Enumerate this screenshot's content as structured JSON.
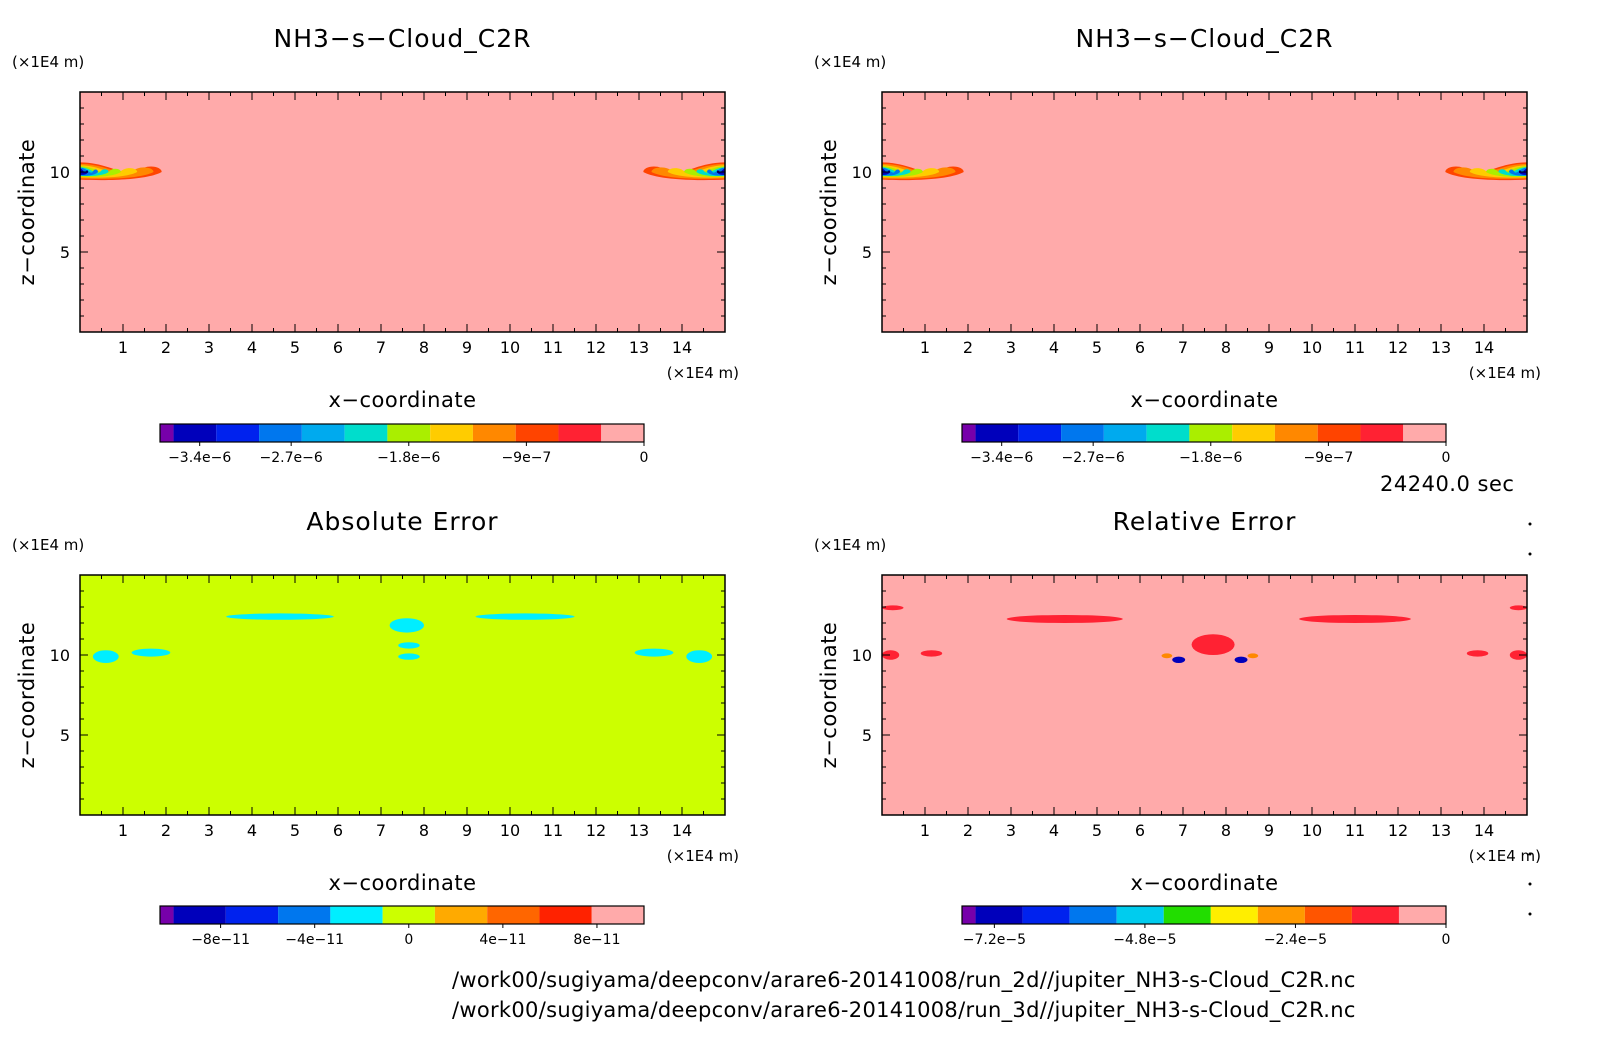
{
  "time_label": "24240.0 sec",
  "footer_lines": [
    "/work00/sugiyama/deepconv/arare6-20141008/run_2d//jupiter_NH3-s-Cloud_C2R.nc",
    "/work00/sugiyama/deepconv/arare6-20141008/run_3d//jupiter_NH3-s-Cloud_C2R.nc"
  ],
  "chart_data": [
    {
      "type": "heatmap",
      "title": "NH3−s−Cloud_C2R",
      "xlabel": "x−coordinate",
      "ylabel": "z−coordinate",
      "x_unit": "(×1E4 m)",
      "y_unit": "(×1E4 m)",
      "xlim": [
        0,
        15
      ],
      "ylim": [
        0,
        15
      ],
      "xticks": [
        "1",
        "2",
        "3",
        "4",
        "5",
        "6",
        "7",
        "8",
        "9",
        "10",
        "11",
        "12",
        "13",
        "14"
      ],
      "yticks": [
        "5",
        "10"
      ],
      "background": "#ffaaaa",
      "features": [
        {
          "shape": "cloud-lens",
          "x0": 0.0,
          "x1": 1.9,
          "z": 10.0,
          "dz": 0.3,
          "side": "left"
        },
        {
          "shape": "cloud-lens",
          "x0": 13.1,
          "x1": 15.0,
          "z": 10.0,
          "dz": 0.3,
          "side": "right"
        }
      ],
      "colorbar": {
        "colors": [
          "#7700aa",
          "#0000bb",
          "#0022ee",
          "#0077ee",
          "#00aaee",
          "#00ddcc",
          "#aaee00",
          "#ffcc00",
          "#ff8800",
          "#ff4400",
          "#ff2233",
          "#ffaaaa"
        ],
        "tick_labels": [
          "−3.4e−6",
          "−2.7e−6",
          "−1.8e−6",
          "−9e−7",
          "0"
        ],
        "tick_values": [
          -3.4e-06,
          -2.7e-06,
          -1.8e-06,
          -9e-07,
          0
        ],
        "range": [
          -3.6e-06,
          0
        ]
      }
    },
    {
      "type": "heatmap",
      "title": "NH3−s−Cloud_C2R",
      "xlabel": "x−coordinate",
      "ylabel": "z−coordinate",
      "x_unit": "(×1E4 m)",
      "y_unit": "(×1E4 m)",
      "xlim": [
        0,
        15
      ],
      "ylim": [
        0,
        15
      ],
      "xticks": [
        "1",
        "2",
        "3",
        "4",
        "5",
        "6",
        "7",
        "8",
        "9",
        "10",
        "11",
        "12",
        "13",
        "14"
      ],
      "yticks": [
        "5",
        "10"
      ],
      "background": "#ffaaaa",
      "features": [
        {
          "shape": "cloud-lens",
          "x0": 0.0,
          "x1": 1.9,
          "z": 10.0,
          "dz": 0.3,
          "side": "left"
        },
        {
          "shape": "cloud-lens",
          "x0": 13.1,
          "x1": 15.0,
          "z": 10.0,
          "dz": 0.3,
          "side": "right"
        }
      ],
      "colorbar": {
        "colors": [
          "#7700aa",
          "#0000bb",
          "#0022ee",
          "#0077ee",
          "#00aaee",
          "#00ddcc",
          "#aaee00",
          "#ffcc00",
          "#ff8800",
          "#ff4400",
          "#ff2233",
          "#ffaaaa"
        ],
        "tick_labels": [
          "−3.4e−6",
          "−2.7e−6",
          "−1.8e−6",
          "−9e−7",
          "0"
        ],
        "tick_values": [
          -3.4e-06,
          -2.7e-06,
          -1.8e-06,
          -9e-07,
          0
        ],
        "range": [
          -3.6e-06,
          0
        ]
      }
    },
    {
      "type": "heatmap",
      "title": "Absolute Error",
      "xlabel": "x−coordinate",
      "ylabel": "z−coordinate",
      "x_unit": "(×1E4 m)",
      "y_unit": "(×1E4 m)",
      "xlim": [
        0,
        15
      ],
      "ylim": [
        0,
        15
      ],
      "xticks": [
        "1",
        "2",
        "3",
        "4",
        "5",
        "6",
        "7",
        "8",
        "9",
        "10",
        "11",
        "12",
        "13",
        "14"
      ],
      "yticks": [
        "5",
        "10"
      ],
      "background": "#ccff00",
      "features": [
        {
          "shape": "blob",
          "color": "#00eeff",
          "x0": 3.4,
          "x1": 5.9,
          "z0": 12.2,
          "z1": 12.6
        },
        {
          "shape": "blob",
          "color": "#00eeff",
          "x0": 9.2,
          "x1": 11.5,
          "z0": 12.2,
          "z1": 12.6
        },
        {
          "shape": "blob",
          "color": "#00eeff",
          "x0": 7.2,
          "x1": 8.0,
          "z0": 11.4,
          "z1": 12.3
        },
        {
          "shape": "blob",
          "color": "#00eeff",
          "x0": 7.4,
          "x1": 7.9,
          "z0": 10.4,
          "z1": 10.8
        },
        {
          "shape": "blob",
          "color": "#00eeff",
          "x0": 7.4,
          "x1": 7.9,
          "z0": 9.7,
          "z1": 10.1
        },
        {
          "shape": "blob",
          "color": "#00eeff",
          "x0": 0.3,
          "x1": 0.9,
          "z0": 9.5,
          "z1": 10.3
        },
        {
          "shape": "blob",
          "color": "#00eeff",
          "x0": 1.2,
          "x1": 2.1,
          "z0": 9.9,
          "z1": 10.4
        },
        {
          "shape": "blob",
          "color": "#00eeff",
          "x0": 12.9,
          "x1": 13.8,
          "z0": 9.9,
          "z1": 10.4
        },
        {
          "shape": "blob",
          "color": "#00eeff",
          "x0": 14.1,
          "x1": 14.7,
          "z0": 9.5,
          "z1": 10.3
        }
      ],
      "colorbar": {
        "colors": [
          "#7700aa",
          "#0000bb",
          "#0022ee",
          "#0077ee",
          "#00eeff",
          "#ccff00",
          "#ffaa00",
          "#ff6600",
          "#ff2200",
          "#ffaaaa"
        ],
        "tick_labels": [
          "−8e−11",
          "−4e−11",
          "0",
          "4e−11",
          "8e−11"
        ],
        "tick_values": [
          -8e-11,
          -4e-11,
          0,
          4e-11,
          8e-11
        ],
        "range": [
          -1e-10,
          1e-10
        ]
      }
    },
    {
      "type": "heatmap",
      "title": "Relative Error",
      "xlabel": "x−coordinate",
      "ylabel": "z−coordinate",
      "x_unit": "(×1E4 m)",
      "y_unit": "(×1E4 m)",
      "xlim": [
        0,
        15
      ],
      "ylim": [
        0,
        15
      ],
      "xticks": [
        "1",
        "2",
        "3",
        "4",
        "5",
        "6",
        "7",
        "8",
        "9",
        "10",
        "11",
        "12",
        "13",
        "14"
      ],
      "yticks": [
        "5",
        "10"
      ],
      "background": "#ffaaaa",
      "features": [
        {
          "shape": "blob",
          "color": "#ff2233",
          "x0": 2.9,
          "x1": 5.6,
          "z0": 12.0,
          "z1": 12.5
        },
        {
          "shape": "blob",
          "color": "#ff2233",
          "x0": 9.7,
          "x1": 12.3,
          "z0": 12.0,
          "z1": 12.5
        },
        {
          "shape": "blob",
          "color": "#ff2233",
          "x0": 7.2,
          "x1": 8.2,
          "z0": 10.0,
          "z1": 11.3
        },
        {
          "shape": "blob",
          "color": "#ff2233",
          "x0": 0.0,
          "x1": 0.5,
          "z0": 12.8,
          "z1": 13.1
        },
        {
          "shape": "blob",
          "color": "#ff2233",
          "x0": 14.6,
          "x1": 15.0,
          "z0": 12.8,
          "z1": 13.1
        },
        {
          "shape": "blob",
          "color": "#ff2233",
          "x0": 0.0,
          "x1": 0.4,
          "z0": 9.7,
          "z1": 10.3
        },
        {
          "shape": "blob",
          "color": "#ff2233",
          "x0": 0.9,
          "x1": 1.4,
          "z0": 9.9,
          "z1": 10.3
        },
        {
          "shape": "blob",
          "color": "#ff2233",
          "x0": 13.6,
          "x1": 14.1,
          "z0": 9.9,
          "z1": 10.3
        },
        {
          "shape": "blob",
          "color": "#ff2233",
          "x0": 14.6,
          "x1": 15.0,
          "z0": 9.7,
          "z1": 10.3
        },
        {
          "shape": "blob",
          "color": "#0000bb",
          "x0": 6.75,
          "x1": 7.05,
          "z0": 9.5,
          "z1": 9.9
        },
        {
          "shape": "blob",
          "color": "#0000bb",
          "x0": 8.2,
          "x1": 8.5,
          "z0": 9.5,
          "z1": 9.9
        },
        {
          "shape": "blob",
          "color": "#ff8800",
          "x0": 6.5,
          "x1": 6.75,
          "z0": 9.8,
          "z1": 10.1
        },
        {
          "shape": "blob",
          "color": "#ff8800",
          "x0": 8.5,
          "x1": 8.75,
          "z0": 9.8,
          "z1": 10.1
        }
      ],
      "colorbar": {
        "colors": [
          "#7700aa",
          "#0000bb",
          "#0022ee",
          "#0077ee",
          "#00ccee",
          "#22dd00",
          "#ffee00",
          "#ff9900",
          "#ff5500",
          "#ff2233",
          "#ffaaaa"
        ],
        "tick_labels": [
          "−7.2e−5",
          "−4.8e−5",
          "−2.4e−5",
          "0"
        ],
        "tick_values": [
          -7.2e-05,
          -4.8e-05,
          -2.4e-05,
          0
        ],
        "range": [
          -7.5e-05,
          0
        ]
      }
    }
  ]
}
